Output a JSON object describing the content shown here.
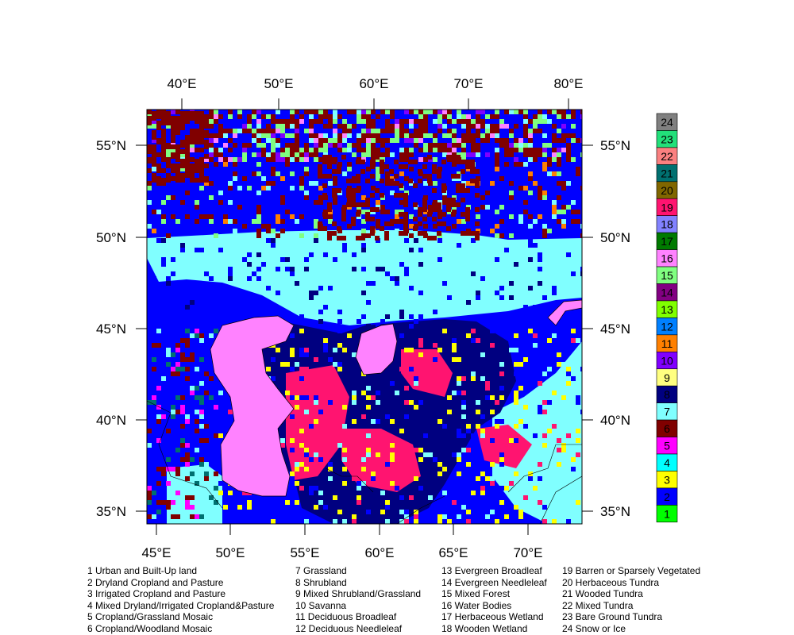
{
  "map": {
    "top_axis_labels": [
      "40°E",
      "50°E",
      "60°E",
      "70°E",
      "80°E"
    ],
    "bottom_axis_labels": [
      "45°E",
      "50°E",
      "55°E",
      "60°E",
      "65°E",
      "70°E"
    ],
    "left_axis_labels": [
      "55°N",
      "50°N",
      "45°N",
      "40°N",
      "35°N"
    ],
    "right_axis_labels": [
      "55°N",
      "50°N",
      "45°N",
      "40°N",
      "35°N"
    ]
  },
  "colorbar": [
    {
      "label": "24",
      "color": "#808080"
    },
    {
      "label": "23",
      "color": "#22e07a"
    },
    {
      "label": "22",
      "color": "#fa8080"
    },
    {
      "label": "21",
      "color": "#007070"
    },
    {
      "label": "20",
      "color": "#806600"
    },
    {
      "label": "19",
      "color": "#ff1470"
    },
    {
      "label": "18",
      "color": "#8282ff"
    },
    {
      "label": "17",
      "color": "#007a00"
    },
    {
      "label": "16",
      "color": "#ff82ff"
    },
    {
      "label": "15",
      "color": "#80ff80"
    },
    {
      "label": "14",
      "color": "#820082"
    },
    {
      "label": "13",
      "color": "#80ff00"
    },
    {
      "label": "12",
      "color": "#0080ff"
    },
    {
      "label": "11",
      "color": "#ff8000"
    },
    {
      "label": "10",
      "color": "#8000ff"
    },
    {
      "label": "9",
      "color": "#ffff80"
    },
    {
      "label": "8",
      "color": "#000080"
    },
    {
      "label": "7",
      "color": "#80ffff"
    },
    {
      "label": "6",
      "color": "#800000"
    },
    {
      "label": "5",
      "color": "#ff00ff"
    },
    {
      "label": "4",
      "color": "#00ffff"
    },
    {
      "label": "3",
      "color": "#ffff00"
    },
    {
      "label": "2",
      "color": "#0000ff"
    },
    {
      "label": "1",
      "color": "#00ff00"
    }
  ],
  "legend": [
    [
      "1 Urban and Built-Up land",
      "2 Dryland Cropland and Pasture",
      "3 Irrigated Cropland and Pasture",
      "4 Mixed Dryland/Irrigated Cropland&Pasture",
      "5 Cropland/Grassland Mosaic",
      "6 Cropland/Woodland Mosaic"
    ],
    [
      "7 Grassland",
      "8 Shrubland",
      "9 Mixed Shrubland/Grassland",
      "10 Savanna",
      "11 Deciduous Broadleaf",
      "12 Deciduous Needleleaf"
    ],
    [
      "13 Evergreen Broadleaf",
      "14 Evergreen Needleleaf",
      "15 Mixed Forest",
      "16 Water Bodies",
      "17 Herbaceous Wetland",
      "18 Wooden Wetland"
    ],
    [
      "19 Barren or Sparsely Vegetated",
      "20 Herbaceous Tundra",
      "21 Wooded Tundra",
      "22 Mixed Tundra",
      "23 Bare Ground Tundra",
      "24 Snow or Ice"
    ]
  ]
}
